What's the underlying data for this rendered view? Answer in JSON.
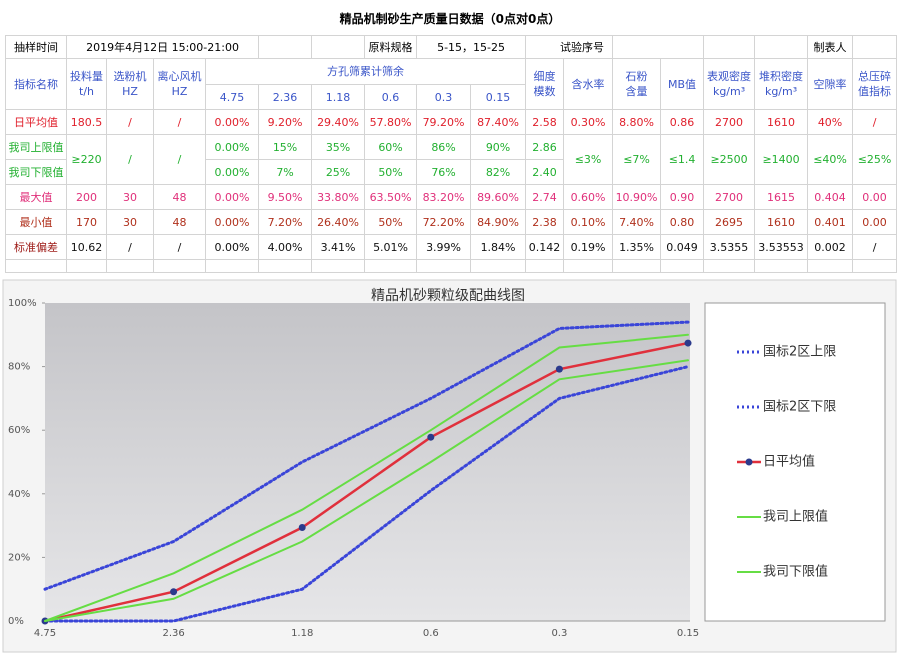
{
  "title": "精品机制砂生产质量日数据（0点对0点）",
  "info": {
    "sample_time_label": "抽样时间",
    "sample_time": "2019年4月12日 15:00-21:00",
    "material_spec_label": "原料规格",
    "material_spec": "5-15，15-25",
    "test_no_label": "试验序号",
    "maker_label": "制表人"
  },
  "header": {
    "indicator": "指标名称",
    "feed": [
      "投料量",
      "t/h"
    ],
    "separator": [
      "选粉机",
      "HZ"
    ],
    "fan": [
      "离心风机",
      "HZ"
    ],
    "sieve_group": "方孔筛累计筛余",
    "sieves": [
      "4.75",
      "2.36",
      "1.18",
      "0.6",
      "0.3",
      "0.15"
    ],
    "others": [
      [
        "细度",
        "模数"
      ],
      [
        "含水率"
      ],
      [
        "石粉",
        "含量"
      ],
      [
        "MB值"
      ],
      [
        "表观密度",
        "kg/m³"
      ],
      [
        "堆积密度",
        "kg/m³"
      ],
      [
        "空隙率"
      ],
      [
        "总压碎",
        "值指标"
      ]
    ]
  },
  "table": {
    "rows": [
      {
        "label": "日平均值",
        "cells": [
          "180.5",
          "/",
          "/",
          "0.00%",
          "9.20%",
          "29.40%",
          "57.80%",
          "79.20%",
          "87.40%",
          "2.58",
          "0.30%",
          "8.80%",
          "0.86",
          "2700",
          "1610",
          "40%",
          "/"
        ]
      },
      {
        "label": "我司上限值",
        "cells": [
          "≥220",
          "/",
          "/",
          "0.00%",
          "15%",
          "35%",
          "60%",
          "86%",
          "90%",
          "2.86",
          "≤3%",
          "≤7%",
          "≤1.4",
          "≥2500",
          "≥1400",
          "≤40%",
          "≤25%"
        ]
      },
      {
        "label": "我司下限值",
        "cells": [
          "0.00%",
          "7%",
          "25%",
          "50%",
          "76%",
          "82%",
          "2.40"
        ]
      },
      {
        "label": "最大值",
        "cells": [
          "200",
          "30",
          "48",
          "0.00%",
          "9.50%",
          "33.80%",
          "63.50%",
          "83.20%",
          "89.60%",
          "2.74",
          "0.60%",
          "10.90%",
          "0.90",
          "2700",
          "1615",
          "0.404",
          "0.00"
        ]
      },
      {
        "label": "最小值",
        "cells": [
          "170",
          "30",
          "48",
          "0.00%",
          "7.20%",
          "26.40%",
          "50%",
          "72.20%",
          "84.90%",
          "2.38",
          "0.10%",
          "7.40%",
          "0.80",
          "2695",
          "1610",
          "0.401",
          "0.00"
        ]
      },
      {
        "label": "标准偏差",
        "cells": [
          "10.62",
          "/",
          "/",
          "0.00%",
          "4.00%",
          "3.41%",
          "5.01%",
          "3.99%",
          "1.84%",
          "0.142",
          "0.19%",
          "1.35%",
          "0.049",
          "3.5355",
          "3.53553",
          "0.002",
          "/"
        ]
      }
    ]
  },
  "chart_data": {
    "type": "line",
    "title": "精品机砂颗粒级配曲线图",
    "categories": [
      "4.75",
      "2.36",
      "1.18",
      "0.6",
      "0.3",
      "0.15"
    ],
    "ylim": [
      0,
      100
    ],
    "yticks": [
      {
        "value": 0,
        "label": "0%"
      },
      {
        "value": 20,
        "label": "20%"
      },
      {
        "value": 40,
        "label": "40%"
      },
      {
        "value": 60,
        "label": "60%"
      },
      {
        "value": 80,
        "label": "80%"
      },
      {
        "value": 100,
        "label": "100%"
      }
    ],
    "series": [
      {
        "name": "国标2区上限",
        "color": "#3a45d8",
        "line_style": "dotted",
        "values": [
          10,
          25,
          50,
          70,
          92,
          94
        ]
      },
      {
        "name": "国标2区下限",
        "color": "#3a45d8",
        "line_style": "dotted",
        "values": [
          0,
          0,
          10,
          41,
          70,
          80
        ]
      },
      {
        "name": "日平均值",
        "color": "#e0303c",
        "line_style": "solid",
        "marker": true,
        "marker_color": "#2b3a8c",
        "values": [
          0,
          9.2,
          29.4,
          57.8,
          79.2,
          87.4
        ]
      },
      {
        "name": "我司上限值",
        "color": "#66dd44",
        "line_style": "solid",
        "values": [
          0,
          15,
          35,
          60,
          86,
          90
        ]
      },
      {
        "name": "我司下限值",
        "color": "#66dd44",
        "line_style": "solid",
        "values": [
          0,
          7,
          25,
          50,
          76,
          82
        ]
      }
    ]
  }
}
